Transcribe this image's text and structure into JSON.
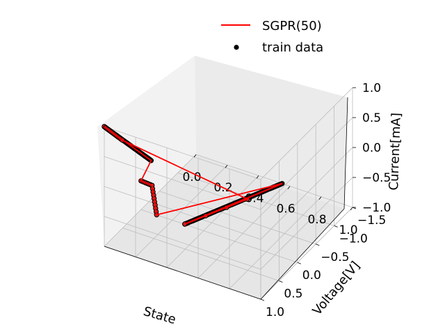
{
  "chart_data": {
    "type": "scatter",
    "projection": "3d",
    "title": "",
    "xlabel": "State",
    "ylabel": "Voltage[V]",
    "zlabel": "Current[mA]",
    "xlim": [
      0.0,
      1.0
    ],
    "ylim": [
      -1.5,
      1.0
    ],
    "zlim": [
      -1.0,
      1.0
    ],
    "x_ticks": [
      "0.0",
      "0.2",
      "0.4",
      "0.6",
      "0.8",
      "1.0"
    ],
    "y_ticks": [
      "−1.5",
      "−1.0",
      "−0.5",
      "0.0",
      "0.5",
      "1.0"
    ],
    "z_ticks": [
      "−1.0",
      "−0.5",
      "0.0",
      "0.5",
      "1.0"
    ],
    "grid": true,
    "legend": {
      "position": "top-right",
      "entries": [
        {
          "label": "SGPR(50)",
          "kind": "line",
          "color": "#ff0000"
        },
        {
          "label": "train data",
          "kind": "scatter",
          "color": "#000000"
        }
      ]
    },
    "series": [
      {
        "name": "SGPR(50)",
        "kind": "line",
        "color": "#ff0000",
        "points": [
          {
            "s": 0.1,
            "v": 0.0,
            "i": -1.0
          },
          {
            "s": 0.55,
            "v": -1.5,
            "i": -1.0
          },
          {
            "s": 0.55,
            "v": 1.15,
            "i": -0.05
          },
          {
            "s": 0.95,
            "v": 1.15,
            "i": 0.72
          },
          {
            "s": 0.15,
            "v": 1.15,
            "i": 1.0
          },
          {
            "s": 0.0,
            "v": 1.0,
            "i": 1.0
          },
          {
            "s": 0.1,
            "v": 0.15,
            "i": 0.0
          },
          {
            "s": 0.0,
            "v": 0.0,
            "i": -0.52
          },
          {
            "s": 0.0,
            "v": -0.3,
            "i": -0.78
          },
          {
            "s": 0.1,
            "v": 0.0,
            "i": -1.0
          }
        ]
      },
      {
        "name": "train data",
        "kind": "scatter",
        "color": "#000000",
        "fill": "#cc2222",
        "segments": [
          {
            "from": {
              "s": 0.0,
              "v": 0.0,
              "i": -0.52
            },
            "to": {
              "s": 0.0,
              "v": -0.3,
              "i": -0.78
            },
            "n": 8
          },
          {
            "from": {
              "s": 0.0,
              "v": -0.3,
              "i": -0.78
            },
            "to": {
              "s": 0.1,
              "v": 0.0,
              "i": -1.0
            },
            "n": 10
          },
          {
            "from": {
              "s": 0.1,
              "v": 0.15,
              "i": 0.0
            },
            "to": {
              "s": 0.0,
              "v": 1.0,
              "i": 1.0
            },
            "n": 90
          },
          {
            "from": {
              "s": 0.0,
              "v": 1.0,
              "i": 1.0
            },
            "to": {
              "s": 0.15,
              "v": 1.15,
              "i": 1.0
            },
            "n": 14
          },
          {
            "from": {
              "s": 0.55,
              "v": -1.5,
              "i": -1.0
            },
            "to": {
              "s": 0.55,
              "v": 1.15,
              "i": -0.05
            },
            "n": 110
          },
          {
            "from": {
              "s": 0.55,
              "v": 1.15,
              "i": -0.05
            },
            "to": {
              "s": 0.95,
              "v": 1.15,
              "i": 0.72
            },
            "n": 4
          }
        ]
      }
    ]
  }
}
